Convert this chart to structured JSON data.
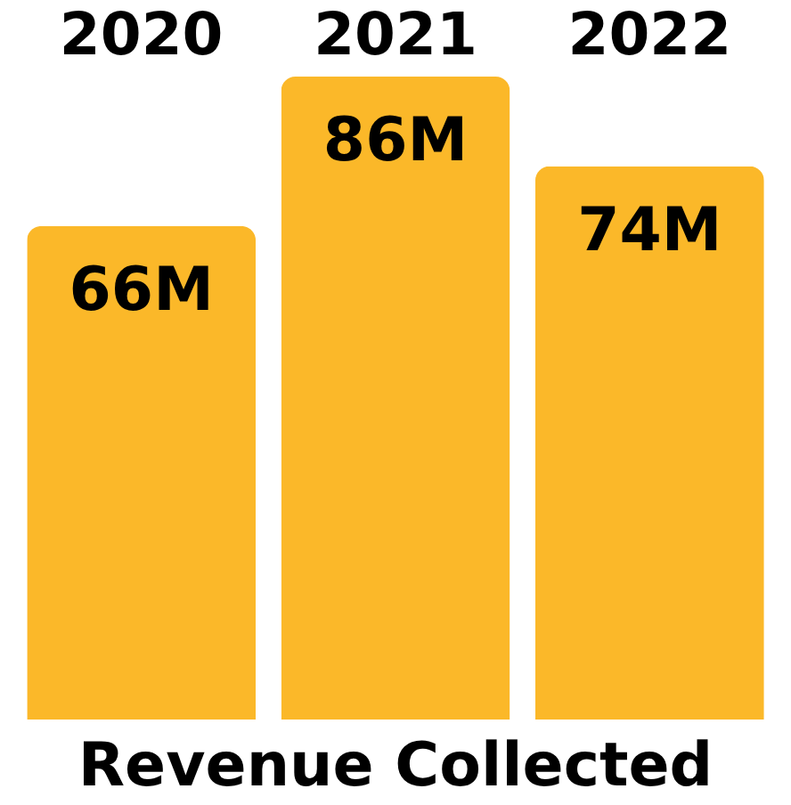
{
  "chart_data": {
    "type": "bar",
    "title": "Revenue Collected",
    "categories": [
      "2020",
      "2021",
      "2022"
    ],
    "values": [
      66,
      86,
      74
    ],
    "value_labels": [
      "66M",
      "86M",
      "74M"
    ],
    "color": "#fbb829",
    "grid": false
  }
}
